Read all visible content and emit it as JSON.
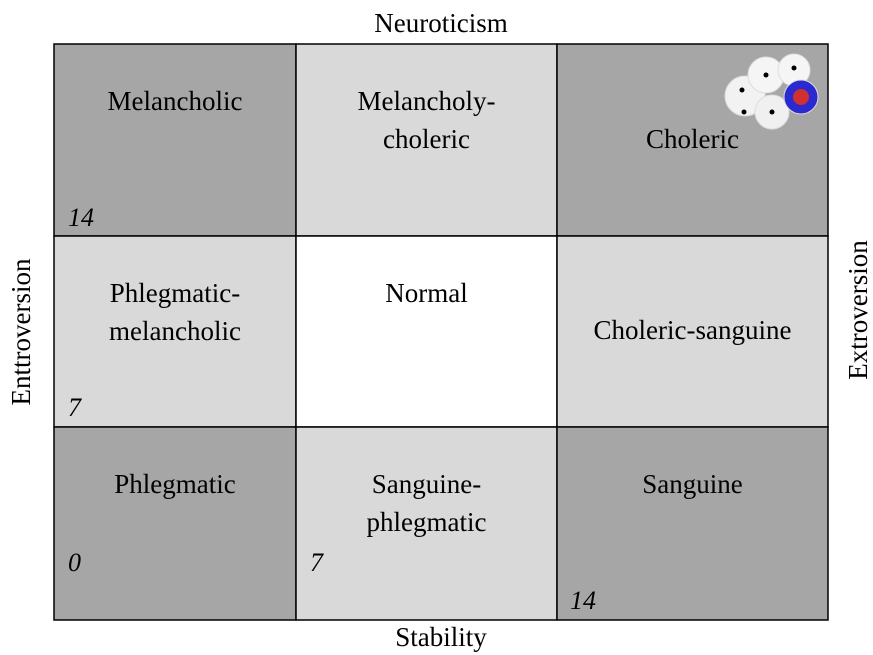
{
  "axes": {
    "top": "Neuroticism",
    "bottom": "Stability",
    "left": "Enttroversion",
    "right": "Extroversion"
  },
  "cells": [
    {
      "lines": [
        "Melancholic"
      ],
      "number": "14"
    },
    {
      "lines": [
        "Melancholy-",
        "choleric"
      ]
    },
    {
      "lines": [
        "Choleric"
      ]
    },
    {
      "lines": [
        "Phlegmatic-",
        "melancholic"
      ],
      "number": "7"
    },
    {
      "lines": [
        "Normal"
      ]
    },
    {
      "lines": [
        "Choleric-sanguine"
      ]
    },
    {
      "lines": [
        "Phlegmatic"
      ],
      "number": "0"
    },
    {
      "lines": [
        "Sanguine-",
        "phlegmatic"
      ],
      "number": "7"
    },
    {
      "lines": [
        "Sanguine"
      ],
      "number": "14"
    }
  ]
}
